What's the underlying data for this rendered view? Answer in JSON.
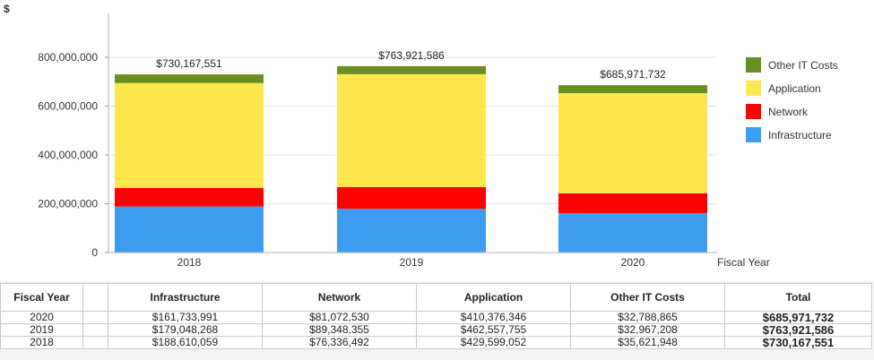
{
  "chart_data": {
    "type": "bar",
    "stacked": true,
    "y_unit_label": "$",
    "xlabel": "Fiscal Year",
    "ylabel": "",
    "categories": [
      "2018",
      "2019",
      "2020"
    ],
    "ylim": [
      0,
      980000000
    ],
    "yticks": [
      0,
      200000000,
      400000000,
      600000000,
      800000000
    ],
    "ytick_labels": [
      "0",
      "200,000,000",
      "400,000,000",
      "600,000,000",
      "800,000,000"
    ],
    "series": [
      {
        "name": "Infrastructure",
        "color": "#3d9df3",
        "values": [
          188610059,
          179048268,
          161733991
        ]
      },
      {
        "name": "Network",
        "color": "#ff0000",
        "values": [
          76336492,
          89348355,
          81072530
        ]
      },
      {
        "name": "Application",
        "color": "#fde74c",
        "values": [
          429599052,
          462557755,
          410376346
        ]
      },
      {
        "name": "Other IT Costs",
        "color": "#6b8e23",
        "values": [
          35621948,
          32967208,
          32788865
        ]
      }
    ],
    "total_labels": [
      "$730,167,551",
      "$763,921,586",
      "$685,971,732"
    ],
    "legend_order": [
      "Other IT Costs",
      "Application",
      "Network",
      "Infrastructure"
    ],
    "legend_position": "right",
    "grid": true
  },
  "table": {
    "headers": [
      "Fiscal Year",
      "",
      "Infrastructure",
      "Network",
      "Application",
      "Other IT Costs",
      "Total"
    ],
    "rows": [
      [
        "2020",
        "",
        "$161,733,991",
        "$81,072,530",
        "$410,376,346",
        "$32,788,865",
        "$685,971,732"
      ],
      [
        "2019",
        "",
        "$179,048,268",
        "$89,348,355",
        "$462,557,755",
        "$32,967,208",
        "$763,921,586"
      ],
      [
        "2018",
        "",
        "$188,610,059",
        "$76,336,492",
        "$429,599,052",
        "$35,621,948",
        "$730,167,551"
      ]
    ]
  }
}
